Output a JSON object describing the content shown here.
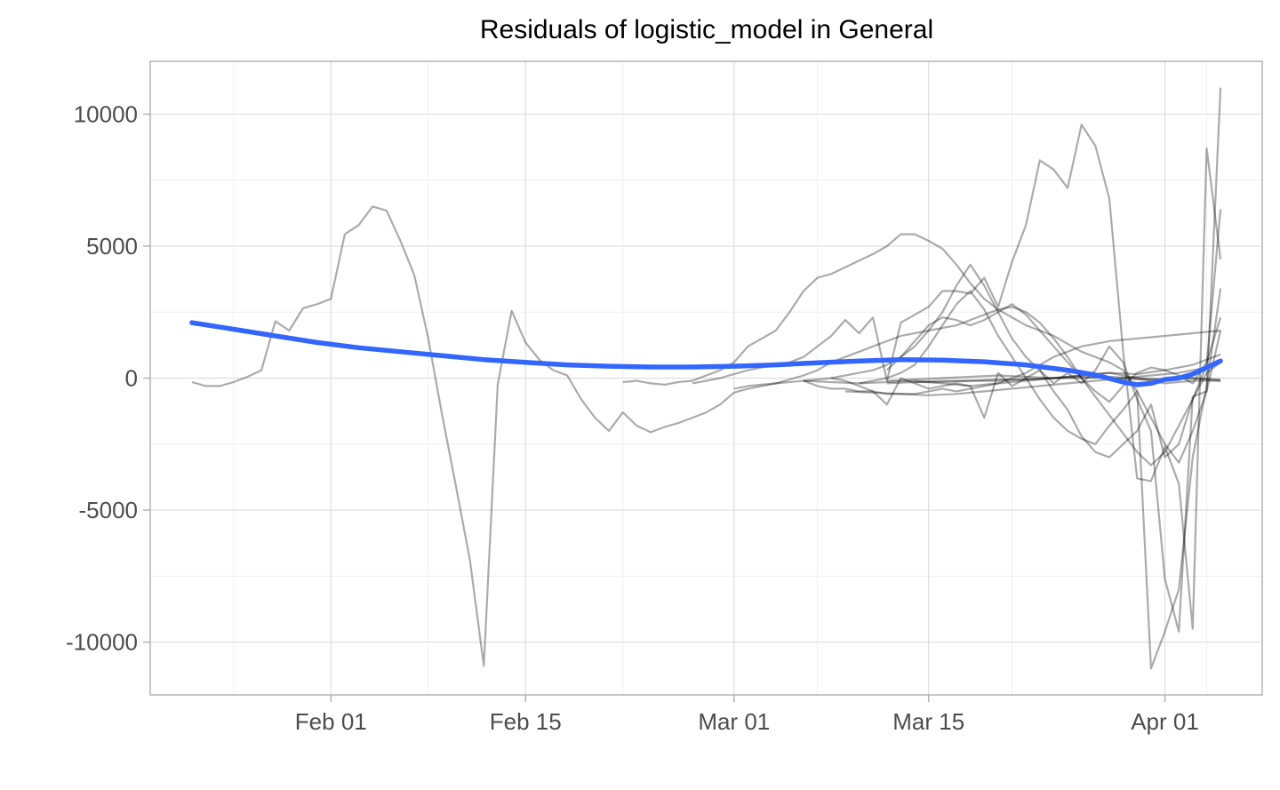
{
  "chart_data": {
    "type": "line",
    "title": "Residuals of logistic_model in General",
    "xlabel": "",
    "ylabel": "",
    "x_axis": {
      "type": "date",
      "range": [
        "2020-01-19",
        "2020-04-08"
      ],
      "ticks": [
        "2020-02-01",
        "2020-02-15",
        "2020-03-01",
        "2020-03-15",
        "2020-04-01"
      ],
      "tick_labels": [
        "Feb 01",
        "Feb 15",
        "Mar 01",
        "Mar 15",
        "Apr 01"
      ]
    },
    "y_axis": {
      "range": [
        -12000,
        12000
      ],
      "ticks": [
        -10000,
        -5000,
        0,
        5000,
        10000
      ],
      "tick_labels": [
        "-10000",
        "-5000",
        "0",
        "5000",
        "10000"
      ]
    },
    "grid": true,
    "legend": "none",
    "colors": {
      "series": "#000000",
      "smooth": "#3366ff",
      "grid_major": "#dedede",
      "grid_minor": "#efefef",
      "panel_border": "#b3b3b3"
    },
    "series": [
      {
        "x": [
          "2020-01-22",
          "2020-01-23",
          "2020-01-24",
          "2020-01-25",
          "2020-01-26",
          "2020-01-27",
          "2020-01-28",
          "2020-01-29",
          "2020-01-30",
          "2020-01-31",
          "2020-02-01",
          "2020-02-02",
          "2020-02-03",
          "2020-02-04",
          "2020-02-05",
          "2020-02-06",
          "2020-02-07",
          "2020-02-08",
          "2020-02-09",
          "2020-02-10",
          "2020-02-11",
          "2020-02-12",
          "2020-02-13",
          "2020-02-14",
          "2020-02-15",
          "2020-02-16",
          "2020-02-17",
          "2020-02-18",
          "2020-02-19",
          "2020-02-20",
          "2020-02-21",
          "2020-02-22",
          "2020-02-23",
          "2020-02-24",
          "2020-02-25",
          "2020-02-26",
          "2020-02-27",
          "2020-02-28",
          "2020-02-29",
          "2020-03-01",
          "2020-03-02",
          "2020-03-03",
          "2020-03-04",
          "2020-03-05",
          "2020-03-06",
          "2020-03-07",
          "2020-03-08",
          "2020-03-09",
          "2020-03-10",
          "2020-03-11",
          "2020-03-12",
          "2020-03-13",
          "2020-03-14",
          "2020-03-15",
          "2020-03-16",
          "2020-03-17",
          "2020-03-18",
          "2020-03-19",
          "2020-03-20",
          "2020-03-21",
          "2020-03-22",
          "2020-03-23",
          "2020-03-24",
          "2020-03-25",
          "2020-03-26",
          "2020-03-27",
          "2020-03-28",
          "2020-03-29",
          "2020-03-30",
          "2020-03-31",
          "2020-04-01",
          "2020-04-02",
          "2020-04-03",
          "2020-04-04",
          "2020-04-05"
        ],
        "y": [
          -150,
          -300,
          -300,
          -150,
          50,
          300,
          2150,
          1800,
          2650,
          2800,
          3000,
          5450,
          5800,
          6500,
          6350,
          5200,
          3900,
          1500,
          -1400,
          -4100,
          -6900,
          -10900,
          -250,
          2550,
          1350,
          700,
          300,
          100,
          -800,
          -1500,
          -2000,
          -1300,
          -1800,
          -2050,
          -1850,
          -1700,
          -1500,
          -1300,
          -1000,
          -550,
          -400,
          -300,
          -200,
          -50,
          100,
          300,
          600,
          800,
          1000,
          1200,
          1400,
          1600,
          1700,
          1800,
          1900,
          2000,
          2200,
          2400,
          2600,
          2700,
          2500,
          2100,
          1500,
          800,
          0,
          -700,
          -1400,
          -2100,
          -2800,
          -3300,
          -2800,
          -1800,
          -800,
          200,
          600
        ]
      },
      {
        "x": [
          "2020-02-22",
          "2020-02-23",
          "2020-02-24",
          "2020-02-25",
          "2020-02-26",
          "2020-02-27",
          "2020-02-28",
          "2020-02-29",
          "2020-03-01",
          "2020-03-02",
          "2020-03-03",
          "2020-03-04",
          "2020-03-05",
          "2020-03-06",
          "2020-03-07",
          "2020-03-08",
          "2020-03-09",
          "2020-03-10",
          "2020-03-11",
          "2020-03-12",
          "2020-03-13",
          "2020-03-14",
          "2020-03-15",
          "2020-03-16",
          "2020-03-17",
          "2020-03-18",
          "2020-03-19",
          "2020-03-20",
          "2020-03-21",
          "2020-03-22",
          "2020-03-23",
          "2020-03-24",
          "2020-03-25",
          "2020-03-26",
          "2020-03-27",
          "2020-03-28",
          "2020-03-29",
          "2020-03-30",
          "2020-03-31",
          "2020-04-01",
          "2020-04-02",
          "2020-04-03",
          "2020-04-04",
          "2020-04-05"
        ],
        "y": [
          -150,
          -100,
          -200,
          -250,
          -150,
          -100,
          100,
          300,
          600,
          1200,
          1500,
          1800,
          2500,
          3300,
          3800,
          3950,
          4200,
          4450,
          4700,
          5000,
          5450,
          5450,
          5200,
          4900,
          4300,
          3600,
          3000,
          2600,
          2300,
          2000,
          1800,
          1600,
          1300,
          1000,
          800,
          600,
          300,
          -500,
          -1500,
          -2500,
          -3200,
          -2000,
          -500,
          1800
        ]
      },
      {
        "x": [
          "2020-02-27",
          "2020-02-28",
          "2020-02-29",
          "2020-03-01",
          "2020-03-02",
          "2020-03-03",
          "2020-03-04",
          "2020-03-05",
          "2020-03-06",
          "2020-03-07",
          "2020-03-08",
          "2020-03-09",
          "2020-03-10",
          "2020-03-11",
          "2020-03-12",
          "2020-03-13",
          "2020-03-14",
          "2020-03-15",
          "2020-03-16",
          "2020-03-17",
          "2020-03-18",
          "2020-03-19",
          "2020-03-20",
          "2020-03-21",
          "2020-03-22",
          "2020-03-23",
          "2020-03-24",
          "2020-03-25",
          "2020-03-26",
          "2020-03-27",
          "2020-03-28",
          "2020-03-29",
          "2020-03-30",
          "2020-03-31",
          "2020-04-01",
          "2020-04-02",
          "2020-04-03",
          "2020-04-04",
          "2020-04-05"
        ],
        "y": [
          -200,
          -100,
          0,
          150,
          300,
          400,
          500,
          600,
          800,
          1200,
          1600,
          2200,
          1700,
          2300,
          -100,
          2100,
          2400,
          2700,
          3300,
          3300,
          3200,
          3800,
          2700,
          4400,
          5800,
          8250,
          7900,
          7200,
          9600,
          8800,
          6800,
          1000,
          -3800,
          -3900,
          -2600,
          -4000,
          -9500,
          8700,
          4500
        ]
      },
      {
        "x": [
          "2020-03-01",
          "2020-03-02",
          "2020-03-03",
          "2020-03-04",
          "2020-03-05",
          "2020-03-06",
          "2020-03-07",
          "2020-03-08",
          "2020-03-09",
          "2020-03-10",
          "2020-03-11",
          "2020-03-12",
          "2020-03-13",
          "2020-03-14",
          "2020-03-15",
          "2020-03-16",
          "2020-03-17",
          "2020-03-18",
          "2020-03-19",
          "2020-03-20",
          "2020-03-21",
          "2020-03-22",
          "2020-03-23",
          "2020-03-24",
          "2020-03-25",
          "2020-03-26",
          "2020-03-27",
          "2020-03-28",
          "2020-03-29",
          "2020-03-30",
          "2020-03-31",
          "2020-04-01",
          "2020-04-02",
          "2020-04-03",
          "2020-04-04",
          "2020-04-05"
        ],
        "y": [
          -400,
          -300,
          -250,
          -200,
          -150,
          -100,
          -300,
          -400,
          -400,
          -500,
          -500,
          -600,
          -600,
          -600,
          -500,
          -400,
          -500,
          -400,
          -300,
          -200,
          0,
          200,
          500,
          800,
          1000,
          1200,
          1300,
          1400,
          1450,
          1500,
          1550,
          1600,
          1650,
          1700,
          1750,
          1800
        ]
      },
      {
        "x": [
          "2020-03-06",
          "2020-03-07",
          "2020-03-08",
          "2020-03-09",
          "2020-03-10",
          "2020-03-11",
          "2020-03-12",
          "2020-03-13",
          "2020-03-14",
          "2020-03-15",
          "2020-03-16",
          "2020-03-17",
          "2020-03-18",
          "2020-03-19",
          "2020-03-20",
          "2020-03-21",
          "2020-03-22",
          "2020-03-23",
          "2020-03-24",
          "2020-03-25",
          "2020-03-26",
          "2020-03-27",
          "2020-03-28",
          "2020-03-29",
          "2020-03-30",
          "2020-03-31",
          "2020-04-01",
          "2020-04-02",
          "2020-04-03",
          "2020-04-04",
          "2020-04-05"
        ],
        "y": [
          -100,
          -50,
          0,
          -100,
          -300,
          -500,
          -1000,
          0,
          -200,
          -400,
          -300,
          -200,
          -300,
          -1500,
          200,
          -300,
          0,
          300,
          -200,
          200,
          -200,
          300,
          1200,
          600,
          -800,
          -2000,
          -7600,
          -9600,
          -700,
          -500,
          11000
        ]
      },
      {
        "x": [
          "2020-03-08",
          "2020-03-09",
          "2020-03-10",
          "2020-03-11",
          "2020-03-12",
          "2020-03-13",
          "2020-03-14",
          "2020-03-15",
          "2020-03-16",
          "2020-03-17",
          "2020-03-18",
          "2020-03-19",
          "2020-03-20",
          "2020-03-21",
          "2020-03-22",
          "2020-03-23",
          "2020-03-24",
          "2020-03-25",
          "2020-03-26",
          "2020-03-27",
          "2020-03-28",
          "2020-03-29",
          "2020-03-30",
          "2020-03-31",
          "2020-04-01",
          "2020-04-02",
          "2020-04-03",
          "2020-04-04",
          "2020-04-05"
        ],
        "y": [
          0,
          100,
          200,
          300,
          500,
          800,
          1200,
          1800,
          2500,
          3500,
          4300,
          3500,
          2500,
          1500,
          800,
          300,
          -500,
          -1200,
          -2200,
          -2800,
          -3000,
          -2500,
          -2000,
          -1000,
          -3000,
          -2500,
          -800,
          500,
          6400
        ]
      },
      {
        "x": [
          "2020-03-10",
          "2020-03-11",
          "2020-03-12",
          "2020-03-13",
          "2020-03-14",
          "2020-03-15",
          "2020-03-16",
          "2020-03-17",
          "2020-03-18",
          "2020-03-19",
          "2020-03-20",
          "2020-03-21",
          "2020-03-22",
          "2020-03-23",
          "2020-03-24",
          "2020-03-25",
          "2020-03-26",
          "2020-03-27",
          "2020-03-28",
          "2020-03-29",
          "2020-03-30",
          "2020-03-31",
          "2020-04-01",
          "2020-04-02",
          "2020-04-03",
          "2020-04-04",
          "2020-04-05"
        ],
        "y": [
          -200,
          -100,
          0,
          200,
          500,
          1200,
          2000,
          2800,
          3300,
          2600,
          1600,
          800,
          0,
          -800,
          -1500,
          -2000,
          -2300,
          -2500,
          -1800,
          -1200,
          -500,
          -11000,
          -9600,
          -8000,
          -3000,
          -300,
          3400
        ]
      },
      {
        "x": [
          "2020-03-12",
          "2020-03-13",
          "2020-03-14",
          "2020-03-15",
          "2020-03-16",
          "2020-03-17",
          "2020-03-18",
          "2020-03-19",
          "2020-03-20",
          "2020-03-21",
          "2020-03-22",
          "2020-03-23",
          "2020-03-24",
          "2020-03-25",
          "2020-03-26",
          "2020-03-27",
          "2020-03-28",
          "2020-03-29",
          "2020-03-30",
          "2020-03-31",
          "2020-04-01",
          "2020-04-02",
          "2020-04-03",
          "2020-04-04",
          "2020-04-05"
        ],
        "y": [
          300,
          800,
          1400,
          2000,
          2300,
          2200,
          2000,
          2200,
          2500,
          2800,
          2400,
          1800,
          1200,
          600,
          0,
          -500,
          -900,
          -300,
          200,
          400,
          300,
          100,
          -200,
          600,
          2300
        ]
      },
      {
        "x": [
          "2020-03-06",
          "2020-03-08",
          "2020-03-10",
          "2020-03-12",
          "2020-03-14",
          "2020-03-16",
          "2020-03-18",
          "2020-03-20",
          "2020-03-22",
          "2020-03-24",
          "2020-03-26",
          "2020-03-28",
          "2020-03-30",
          "2020-04-01",
          "2020-04-03",
          "2020-04-05"
        ],
        "y": [
          -100,
          -150,
          -200,
          -150,
          -100,
          -200,
          -300,
          -200,
          -100,
          0,
          100,
          200,
          150,
          300,
          500,
          900
        ]
      },
      {
        "x": [
          "2020-03-09",
          "2020-03-11",
          "2020-03-13",
          "2020-03-15",
          "2020-03-17",
          "2020-03-19",
          "2020-03-21",
          "2020-03-23",
          "2020-03-25",
          "2020-03-27",
          "2020-03-29",
          "2020-03-31",
          "2020-04-02",
          "2020-04-04",
          "2020-04-05"
        ],
        "y": [
          -500,
          -550,
          -600,
          -650,
          -600,
          -500,
          -400,
          -300,
          -200,
          -100,
          0,
          100,
          200,
          400,
          600
        ]
      },
      {
        "x": [
          "2020-03-12",
          "2020-03-14",
          "2020-03-16",
          "2020-03-18",
          "2020-03-20",
          "2020-03-22",
          "2020-03-24",
          "2020-03-26",
          "2020-03-28",
          "2020-03-30",
          "2020-04-01",
          "2020-04-03",
          "2020-04-05"
        ],
        "y": [
          -100,
          -50,
          0,
          50,
          100,
          50,
          0,
          100,
          200,
          0,
          -200,
          -100,
          -100
        ]
      },
      {
        "x": [
          "2020-03-12",
          "2020-03-14",
          "2020-03-16",
          "2020-03-18",
          "2020-03-20",
          "2020-03-22",
          "2020-03-24",
          "2020-03-26",
          "2020-03-28",
          "2020-03-30",
          "2020-04-01",
          "2020-04-03",
          "2020-04-05"
        ],
        "y": [
          -200,
          -150,
          -150,
          -100,
          -100,
          -50,
          0,
          50,
          0,
          -50,
          -50,
          0,
          -50
        ]
      },
      {
        "x": [
          "2020-03-14",
          "2020-03-16",
          "2020-03-18",
          "2020-03-20",
          "2020-03-22",
          "2020-03-24",
          "2020-03-26",
          "2020-03-28",
          "2020-03-30",
          "2020-04-01",
          "2020-04-03",
          "2020-04-05"
        ],
        "y": [
          -150,
          -100,
          -100,
          -50,
          -50,
          0,
          0,
          50,
          0,
          -50,
          0,
          -100
        ]
      }
    ],
    "smooth": {
      "x": [
        "2020-01-22",
        "2020-01-25",
        "2020-01-28",
        "2020-01-31",
        "2020-02-03",
        "2020-02-06",
        "2020-02-09",
        "2020-02-12",
        "2020-02-15",
        "2020-02-18",
        "2020-02-21",
        "2020-02-24",
        "2020-02-27",
        "2020-03-01",
        "2020-03-04",
        "2020-03-07",
        "2020-03-10",
        "2020-03-13",
        "2020-03-16",
        "2020-03-19",
        "2020-03-22",
        "2020-03-25",
        "2020-03-27",
        "2020-03-29",
        "2020-03-30",
        "2020-03-31",
        "2020-04-01",
        "2020-04-02",
        "2020-04-03",
        "2020-04-04",
        "2020-04-05"
      ],
      "y": [
        2100,
        1850,
        1600,
        1350,
        1150,
        1000,
        850,
        700,
        600,
        500,
        450,
        420,
        420,
        450,
        500,
        580,
        650,
        700,
        680,
        620,
        500,
        300,
        120,
        -150,
        -250,
        -200,
        -50,
        0,
        150,
        400,
        650
      ]
    }
  }
}
